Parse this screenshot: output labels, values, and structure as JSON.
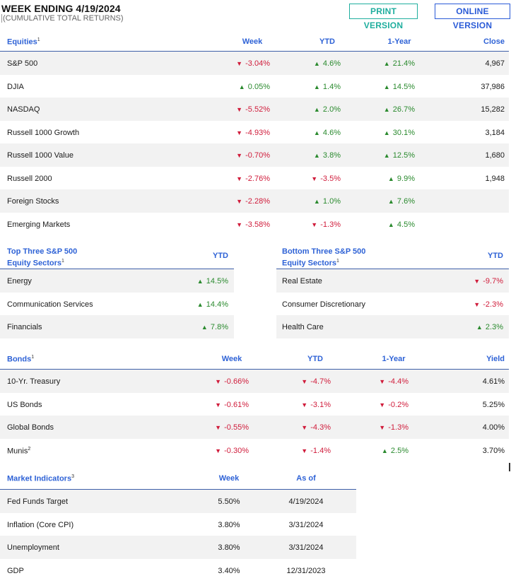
{
  "header": {
    "title": "WEEK ENDING 4/19/2024",
    "subtitle": "(CUMULATIVE TOTAL RETURNS)",
    "print_label": "PRINT VERSION",
    "online_label": "ONLINE VERSION"
  },
  "colors": {
    "accent": "#2e62d6",
    "up": "#2a8a2e",
    "down": "#d01c3b",
    "print": "#1fae9e",
    "rule": "#3d5fa8",
    "shade": "#f2f2f2"
  },
  "icons": {
    "up": "up-triangle-icon",
    "down": "down-triangle-icon"
  },
  "equities": {
    "heading": "Equities",
    "footnote": "1",
    "columns": [
      "Week",
      "YTD",
      "1-Year",
      "Close"
    ],
    "rows": [
      {
        "name": "S&P 500",
        "week": "-3.04%",
        "week_dir": "down",
        "ytd": "4.6%",
        "ytd_dir": "up",
        "year": "21.4%",
        "year_dir": "up",
        "close": "4,967"
      },
      {
        "name": "DJIA",
        "week": "0.05%",
        "week_dir": "up",
        "ytd": "1.4%",
        "ytd_dir": "up",
        "year": "14.5%",
        "year_dir": "up",
        "close": "37,986"
      },
      {
        "name": "NASDAQ",
        "week": "-5.52%",
        "week_dir": "down",
        "ytd": "2.0%",
        "ytd_dir": "up",
        "year": "26.7%",
        "year_dir": "up",
        "close": "15,282"
      },
      {
        "name": "Russell 1000 Growth",
        "week": "-4.93%",
        "week_dir": "down",
        "ytd": "4.6%",
        "ytd_dir": "up",
        "year": "30.1%",
        "year_dir": "up",
        "close": "3,184"
      },
      {
        "name": "Russell 1000 Value",
        "week": "-0.70%",
        "week_dir": "down",
        "ytd": "3.8%",
        "ytd_dir": "up",
        "year": "12.5%",
        "year_dir": "up",
        "close": "1,680"
      },
      {
        "name": "Russell 2000",
        "week": "-2.76%",
        "week_dir": "down",
        "ytd": "-3.5%",
        "ytd_dir": "down",
        "year": "9.9%",
        "year_dir": "up",
        "close": "1,948"
      },
      {
        "name": "Foreign Stocks",
        "week": "-2.28%",
        "week_dir": "down",
        "ytd": "1.0%",
        "ytd_dir": "up",
        "year": "7.6%",
        "year_dir": "up",
        "close": ""
      },
      {
        "name": "Emerging Markets",
        "week": "-3.58%",
        "week_dir": "down",
        "ytd": "-1.3%",
        "ytd_dir": "down",
        "year": "4.5%",
        "year_dir": "up",
        "close": ""
      }
    ]
  },
  "top_sectors": {
    "heading_line1": "Top Three S&P 500",
    "heading_line2": "Equity Sectors",
    "footnote": "1",
    "column": "YTD",
    "rows": [
      {
        "name": "Energy",
        "value": "14.5%",
        "dir": "up"
      },
      {
        "name": "Communication Services",
        "value": "14.4%",
        "dir": "up"
      },
      {
        "name": "Financials",
        "value": "7.8%",
        "dir": "up"
      }
    ]
  },
  "bottom_sectors": {
    "heading_line1": "Bottom Three S&P 500",
    "heading_line2": "Equity Sectors",
    "footnote": "1",
    "column": "YTD",
    "rows": [
      {
        "name": "Real Estate",
        "value": "-9.7%",
        "dir": "down"
      },
      {
        "name": "Consumer Discretionary",
        "value": "-2.3%",
        "dir": "down"
      },
      {
        "name": "Health Care",
        "value": "2.3%",
        "dir": "up"
      }
    ]
  },
  "bonds": {
    "heading": "Bonds",
    "footnote": "1",
    "columns": [
      "Week",
      "YTD",
      "1-Year",
      "Yield"
    ],
    "rows": [
      {
        "name": "10-Yr. Treasury",
        "sup": "",
        "week": "-0.66%",
        "week_dir": "down",
        "ytd": "-4.7%",
        "ytd_dir": "down",
        "year": "-4.4%",
        "year_dir": "down",
        "yield": "4.61%"
      },
      {
        "name": "US Bonds",
        "sup": "",
        "week": "-0.61%",
        "week_dir": "down",
        "ytd": "-3.1%",
        "ytd_dir": "down",
        "year": "-0.2%",
        "year_dir": "down",
        "yield": "5.25%"
      },
      {
        "name": "Global Bonds",
        "sup": "",
        "week": "-0.55%",
        "week_dir": "down",
        "ytd": "-4.3%",
        "ytd_dir": "down",
        "year": "-1.3%",
        "year_dir": "down",
        "yield": "4.00%"
      },
      {
        "name": "Munis",
        "sup": "2",
        "week": "-0.30%",
        "week_dir": "down",
        "ytd": "-1.4%",
        "ytd_dir": "down",
        "year": "2.5%",
        "year_dir": "up",
        "yield": "3.70%"
      }
    ]
  },
  "indicators": {
    "heading": "Market Indicators",
    "footnote": "3",
    "columns": [
      "Week",
      "As of"
    ],
    "rows": [
      {
        "name": "Fed Funds Target",
        "week": "5.50%",
        "asof": "4/19/2024"
      },
      {
        "name": "Inflation (Core CPI)",
        "week": "3.80%",
        "asof": "3/31/2024"
      },
      {
        "name": "Unemployment",
        "week": "3.80%",
        "asof": "3/31/2024"
      },
      {
        "name": "GDP",
        "week": "3.40%",
        "asof": "12/31/2023"
      }
    ]
  }
}
